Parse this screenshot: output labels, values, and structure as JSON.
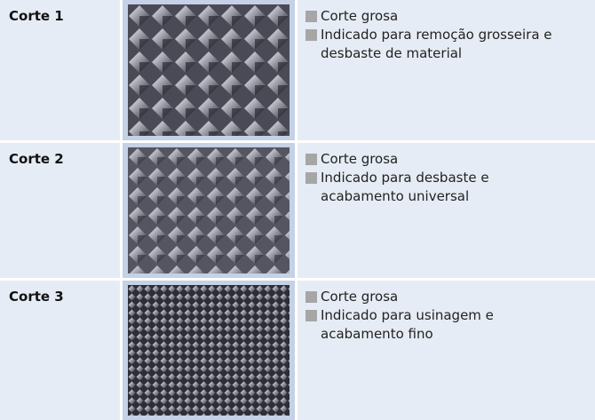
{
  "table": {
    "rows": [
      {
        "label": "Corte 1",
        "bullets": [
          "Corte grosa",
          "Indicado para remoção grosseira e desbaste de material"
        ]
      },
      {
        "label": "Corte 2",
        "bullets": [
          "Corte grosa",
          "Indicado para desbaste e acabamento universal"
        ]
      },
      {
        "label": "Corte 3",
        "bullets": [
          "Corte grosa",
          "Indicado para usinagem e acabamento fino"
        ]
      }
    ]
  }
}
